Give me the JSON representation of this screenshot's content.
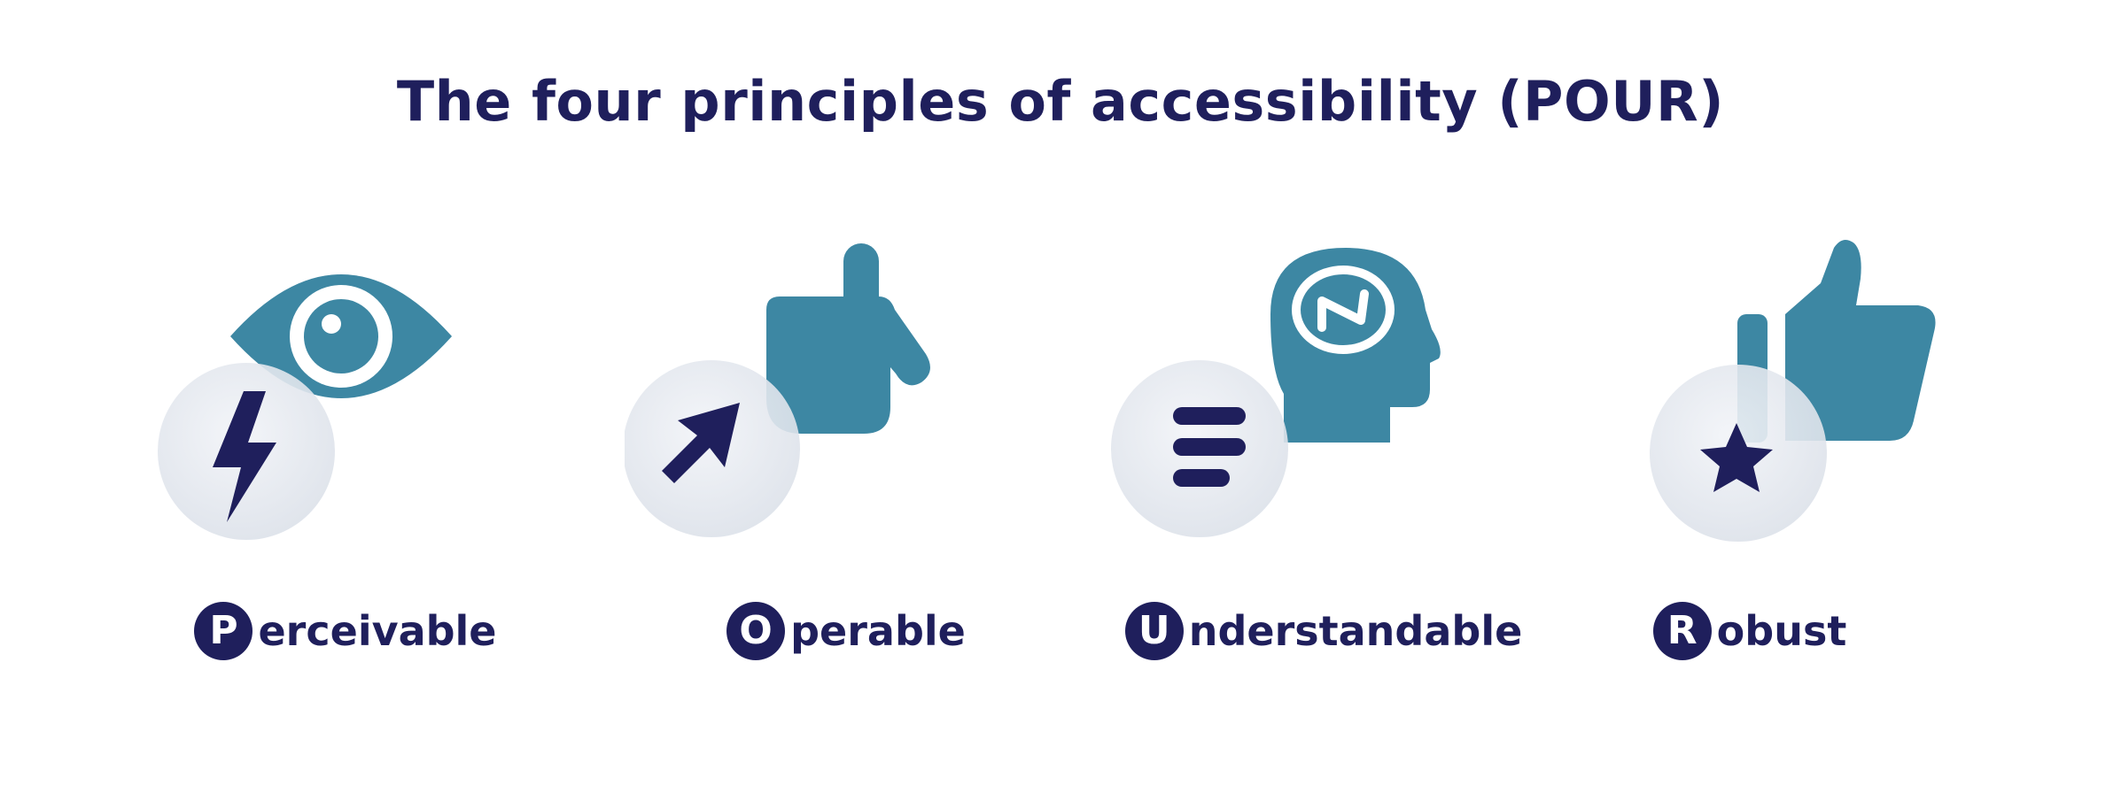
{
  "title": "The four principles of accessibility (POUR)",
  "principles": [
    {
      "initial": "P",
      "rest": "erceivable",
      "icon": "eye-icon",
      "badge_icon": "lightning-icon"
    },
    {
      "initial": "O",
      "rest": "perable",
      "icon": "pointing-hand-icon",
      "badge_icon": "cursor-icon"
    },
    {
      "initial": "U",
      "rest": "nderstandable",
      "icon": "head-brain-icon",
      "badge_icon": "text-lines-icon"
    },
    {
      "initial": "R",
      "rest": "obust",
      "icon": "thumbs-up-icon",
      "badge_icon": "star-icon"
    }
  ],
  "colors": {
    "navy": "#1f1f5c",
    "teal": "#3d87a3",
    "disc": "#e9ecf2",
    "background": "#ffffff"
  }
}
